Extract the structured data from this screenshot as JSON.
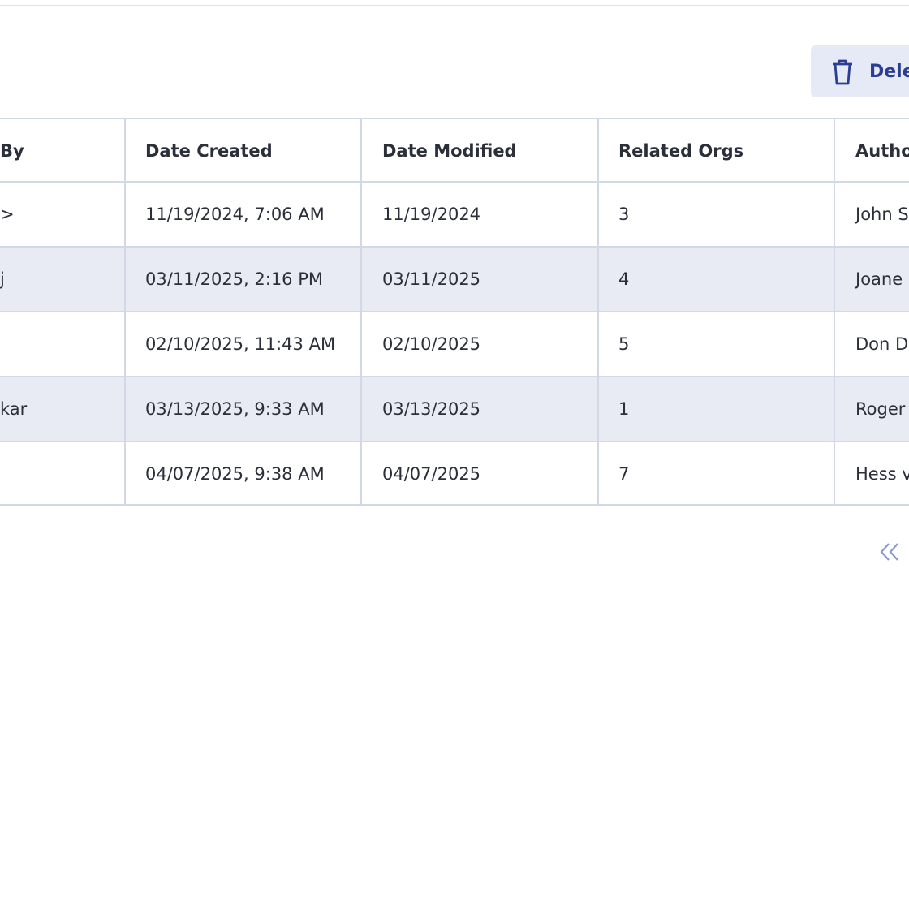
{
  "toolbar": {
    "delete_button": "Dele"
  },
  "table": {
    "columns": [
      "By",
      "Date Created",
      "Date Modified",
      "Related Orgs",
      "Autho"
    ],
    "rows": [
      [
        ">",
        "11/19/2024, 7:06 AM",
        "11/19/2024",
        "3",
        "John S"
      ],
      [
        "j",
        "03/11/2025, 2:16 PM",
        "03/11/2025",
        "4",
        "Joane"
      ],
      [
        null,
        "02/10/2025, 11:43 AM",
        "02/10/2025",
        "5",
        "Don D"
      ],
      [
        "kar",
        "03/13/2025, 9:33 AM",
        "03/13/2025",
        "1",
        "Roger"
      ],
      [
        null,
        "04/07/2025, 9:38 AM",
        "04/07/2025",
        "7",
        "Hess v"
      ]
    ]
  }
}
